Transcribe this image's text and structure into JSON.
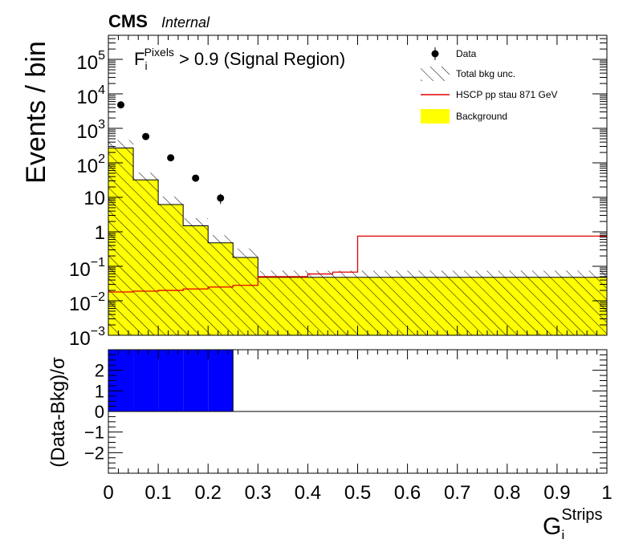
{
  "header": {
    "experiment": "CMS",
    "status": "Internal"
  },
  "chart_data": [
    {
      "type": "histogram",
      "panel": "main",
      "annotation": {
        "base": "F",
        "sub": "i",
        "sup": "Pixels",
        "rest": "> 0.9 (Signal Region)"
      },
      "ylabel": "Events / bin",
      "yscale": "log",
      "ylim": [
        0.001,
        500000
      ],
      "xlim": [
        0,
        1
      ],
      "yticks": [
        {
          "v": 100000,
          "base": "10",
          "exp": "5"
        },
        {
          "v": 10000,
          "base": "10",
          "exp": "4"
        },
        {
          "v": 1000,
          "base": "10",
          "exp": "3"
        },
        {
          "v": 100,
          "base": "10",
          "exp": "2"
        },
        {
          "v": 10,
          "base": "10",
          "exp": ""
        },
        {
          "v": 1,
          "base": "1",
          "exp": ""
        },
        {
          "v": 0.1,
          "base": "10",
          "exp": "−1"
        },
        {
          "v": 0.01,
          "base": "10",
          "exp": "−2"
        },
        {
          "v": 0.001,
          "base": "10",
          "exp": "−3"
        }
      ],
      "bin_edges": [
        0,
        0.05,
        0.1,
        0.15,
        0.2,
        0.25,
        0.3,
        0.4,
        0.45,
        0.5,
        1.0
      ],
      "series": [
        {
          "name": "Data",
          "kind": "points",
          "x": [
            0.025,
            0.075,
            0.125,
            0.175,
            0.225
          ],
          "y": [
            4800,
            580,
            140,
            36,
            9.5
          ],
          "yerr_up": [
            70,
            24,
            12,
            6,
            3.1
          ],
          "yerr_down": [
            70,
            24,
            12,
            6,
            3.1
          ],
          "color": "#000000"
        },
        {
          "name": "Total bkg unc.",
          "kind": "hatched-band",
          "low": [
            180,
            22,
            4.2,
            1.0,
            0.3,
            0.11,
            0.038,
            0.038,
            0.038,
            0.038
          ],
          "high": [
            460,
            52,
            10.5,
            2.5,
            0.8,
            0.33,
            0.075,
            0.075,
            0.075,
            0.075
          ],
          "color": "#000000"
        },
        {
          "name": "HSCP pp stau 871 GeV",
          "kind": "step-line",
          "values": [
            0.018,
            0.019,
            0.02,
            0.022,
            0.025,
            0.028,
            0.05,
            0.06,
            0.068,
            0.75
          ],
          "color": "#e00000"
        },
        {
          "name": "Background",
          "kind": "filled-step",
          "values": [
            270,
            32,
            6.2,
            1.5,
            0.48,
            0.18,
            0.048,
            0.048,
            0.048,
            0.048
          ],
          "color": "#ffff00"
        }
      ],
      "legend_position": "top-right"
    },
    {
      "type": "bar",
      "panel": "ratio",
      "ylabel_parts": {
        "text": "(Data-Bkg)/",
        "sigma": "σ"
      },
      "ylim": [
        -3,
        3
      ],
      "yticks": [
        "2",
        "1",
        "0",
        "−1",
        "−2"
      ],
      "xlabel": {
        "base": "G",
        "sub": "i",
        "sup": "Strips"
      },
      "xticks": [
        "0",
        "0.1",
        "0.2",
        "0.3",
        "0.4",
        "0.5",
        "0.6",
        "0.7",
        "0.8",
        "0.9",
        "1"
      ],
      "bin_edges": [
        0,
        0.05,
        0.1,
        0.15,
        0.2,
        0.25,
        0.3,
        0.4,
        0.45,
        0.5,
        1.0
      ],
      "values": [
        3,
        3,
        3,
        3,
        3,
        0,
        0,
        0,
        0,
        0
      ],
      "color": "#0000ff"
    }
  ]
}
